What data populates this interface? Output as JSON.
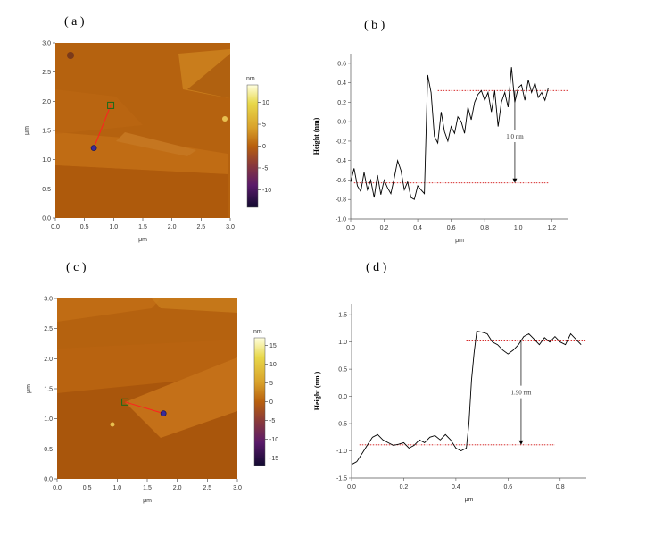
{
  "panels": [
    {
      "label": "( a )"
    },
    {
      "label": "( b )"
    },
    {
      "label": "( c )"
    },
    {
      "label": "( d )"
    }
  ],
  "chart_data": [
    {
      "id": "a",
      "type": "heatmap",
      "description_label": "AFM topography image",
      "xlabel": "μm",
      "ylabel": "μm",
      "xlim": [
        0,
        3.0
      ],
      "ylim": [
        0,
        3.0
      ],
      "xticks": [
        "0.0",
        "0.5",
        "1.0",
        "1.5",
        "2.0",
        "2.5",
        "3.0"
      ],
      "yticks": [
        "0.0",
        "0.5",
        "1.0",
        "1.5",
        "2.0",
        "2.5",
        "3.0"
      ],
      "colorbar": {
        "label": "nm",
        "ticks": [
          "10",
          "5",
          "0",
          "-5",
          "-10"
        ],
        "range": [
          -14,
          14
        ]
      },
      "profile_line": {
        "start": [
          0.66,
          1.2
        ],
        "end": [
          0.95,
          1.93
        ]
      },
      "colors": {
        "base": "#b5620f",
        "high": "#c97d1c",
        "low": "#9c4f0a"
      }
    },
    {
      "id": "b",
      "type": "line",
      "xlabel": "μm",
      "ylabel": "Height (nm)",
      "xlim": [
        0,
        1.3
      ],
      "ylim": [
        -1.0,
        0.7
      ],
      "xticks": [
        "0.0",
        "0.2",
        "0.4",
        "0.6",
        "0.8",
        "1.0",
        "1.2"
      ],
      "yticks": [
        "0.6",
        "0.4",
        "0.2",
        "0.0",
        "-0.2",
        "-0.4",
        "-0.6",
        "-0.8",
        "-1.0"
      ],
      "annotation": "1.0 nm",
      "ref_lines": [
        0.32,
        -0.63
      ],
      "arrow_x": 0.98,
      "x": [
        0.0,
        0.02,
        0.04,
        0.06,
        0.08,
        0.1,
        0.12,
        0.14,
        0.16,
        0.18,
        0.2,
        0.22,
        0.24,
        0.26,
        0.28,
        0.3,
        0.32,
        0.34,
        0.36,
        0.38,
        0.4,
        0.42,
        0.44,
        0.45,
        0.46,
        0.48,
        0.5,
        0.52,
        0.54,
        0.56,
        0.58,
        0.6,
        0.62,
        0.64,
        0.66,
        0.68,
        0.7,
        0.72,
        0.74,
        0.76,
        0.78,
        0.8,
        0.82,
        0.84,
        0.86,
        0.88,
        0.9,
        0.92,
        0.94,
        0.96,
        0.98,
        1.0,
        1.02,
        1.04,
        1.06,
        1.08,
        1.1,
        1.12,
        1.14,
        1.16,
        1.18
      ],
      "y": [
        -0.62,
        -0.48,
        -0.66,
        -0.72,
        -0.52,
        -0.7,
        -0.6,
        -0.78,
        -0.55,
        -0.75,
        -0.6,
        -0.68,
        -0.74,
        -0.58,
        -0.4,
        -0.5,
        -0.7,
        -0.62,
        -0.78,
        -0.8,
        -0.66,
        -0.7,
        -0.74,
        -0.1,
        0.48,
        0.3,
        -0.15,
        -0.22,
        0.1,
        -0.1,
        -0.2,
        -0.05,
        -0.12,
        0.05,
        0.0,
        -0.12,
        0.15,
        0.02,
        0.2,
        0.28,
        0.32,
        0.22,
        0.3,
        0.1,
        0.32,
        -0.05,
        0.2,
        0.3,
        0.15,
        0.56,
        0.2,
        0.35,
        0.38,
        0.22,
        0.43,
        0.3,
        0.4,
        0.25,
        0.3,
        0.22,
        0.35
      ]
    },
    {
      "id": "c",
      "type": "heatmap",
      "description_label": "AFM topography image",
      "xlabel": "μm",
      "ylabel": "μm",
      "xlim": [
        0,
        3.0
      ],
      "ylim": [
        0,
        3.0
      ],
      "xticks": [
        "0.0",
        "0.5",
        "1.0",
        "1.5",
        "2.0",
        "2.5",
        "3.0"
      ],
      "yticks": [
        "0.0",
        "0.5",
        "1.0",
        "1.5",
        "2.0",
        "2.5",
        "3.0"
      ],
      "colorbar": {
        "label": "nm",
        "ticks": [
          "15",
          "10",
          "5",
          "0",
          "-5",
          "-10",
          "-15"
        ],
        "range": [
          -17,
          17
        ]
      },
      "profile_line": {
        "start": [
          1.13,
          1.28
        ],
        "end": [
          1.77,
          1.09
        ]
      },
      "colors": {
        "base": "#b5620f",
        "high": "#c97d1c",
        "low": "#9c4f0a"
      }
    },
    {
      "id": "d",
      "type": "line",
      "xlabel": "μm",
      "ylabel": "Height (nm )",
      "xlim": [
        0,
        0.9
      ],
      "ylim": [
        -1.5,
        1.7
      ],
      "xticks": [
        "0.0",
        "0.2",
        "0.4",
        "0.6",
        "0.8"
      ],
      "yticks": [
        "1.5",
        "1.0",
        "0.5",
        "0.0",
        "-0.5",
        "-1.0",
        "-1.5"
      ],
      "annotation": "1.90 nm",
      "ref_lines": [
        1.02,
        -0.89
      ],
      "arrow_x": 0.65,
      "x": [
        0.0,
        0.02,
        0.04,
        0.06,
        0.08,
        0.1,
        0.12,
        0.14,
        0.16,
        0.18,
        0.2,
        0.22,
        0.24,
        0.26,
        0.28,
        0.3,
        0.32,
        0.34,
        0.36,
        0.38,
        0.4,
        0.42,
        0.44,
        0.45,
        0.46,
        0.47,
        0.48,
        0.5,
        0.52,
        0.54,
        0.56,
        0.58,
        0.6,
        0.62,
        0.64,
        0.66,
        0.68,
        0.7,
        0.72,
        0.74,
        0.76,
        0.78,
        0.8,
        0.82,
        0.84,
        0.86,
        0.88
      ],
      "y": [
        -1.25,
        -1.2,
        -1.05,
        -0.9,
        -0.75,
        -0.7,
        -0.8,
        -0.85,
        -0.9,
        -0.88,
        -0.85,
        -0.95,
        -0.9,
        -0.8,
        -0.85,
        -0.75,
        -0.72,
        -0.8,
        -0.7,
        -0.8,
        -0.95,
        -1.0,
        -0.95,
        -0.5,
        0.3,
        0.8,
        1.2,
        1.18,
        1.15,
        1.0,
        0.95,
        0.85,
        0.78,
        0.85,
        0.95,
        1.1,
        1.15,
        1.05,
        0.95,
        1.08,
        1.0,
        1.1,
        1.0,
        0.95,
        1.15,
        1.05,
        0.95
      ]
    }
  ]
}
